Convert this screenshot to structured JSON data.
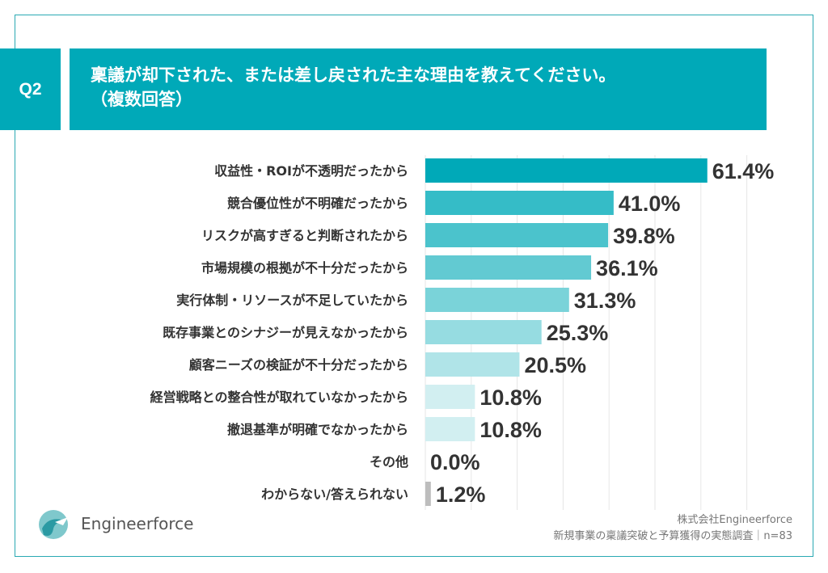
{
  "header": {
    "question_number": "Q2",
    "title_line1": "稟議が却下された、または差し戻された主な理由を教えてください。",
    "title_line2": "（複数回答）"
  },
  "chart_data": {
    "type": "bar",
    "orientation": "horizontal",
    "categories": [
      "収益性・ROIが不透明だったから",
      "競合優位性が不明確だったから",
      "リスクが高すぎると判断されたから",
      "市場規模の根拠が不十分だったから",
      "実行体制・リソースが不足していたから",
      "既存事業とのシナジーが見えなかったから",
      "顧客ニーズの検証が不十分だったから",
      "経営戦略との整合性が取れていなかったから",
      "撤退基準が明確でなかったから",
      "その他",
      "わからない/答えられない"
    ],
    "values": [
      61.4,
      41.0,
      39.8,
      36.1,
      31.3,
      25.3,
      20.5,
      10.8,
      10.8,
      0.0,
      1.2
    ],
    "data_labels": [
      "61.4%",
      "41.0%",
      "39.8%",
      "36.1%",
      "31.3%",
      "25.3%",
      "20.5%",
      "10.8%",
      "10.8%",
      "0.0%",
      "1.2%"
    ],
    "xlim": [
      0,
      70
    ],
    "grid": true,
    "grid_step": 10,
    "unit": "%",
    "colors": [
      "#00a9b8",
      "#35bcc7",
      "#4bc3cc",
      "#62cad2",
      "#7ad3d9",
      "#96dce1",
      "#b0e4e8",
      "#d2eff1",
      "#d2eff1",
      "#d2eff1",
      "#bdbdbd"
    ]
  },
  "footer": {
    "logo_text": "Engineerforce",
    "company": "株式会社Engineerforce",
    "survey": "新規事業の稟議突破と予算獲得の実態調査｜n=83"
  },
  "colors": {
    "accent": "#00a9b8",
    "frame": "#2aa9b3"
  }
}
